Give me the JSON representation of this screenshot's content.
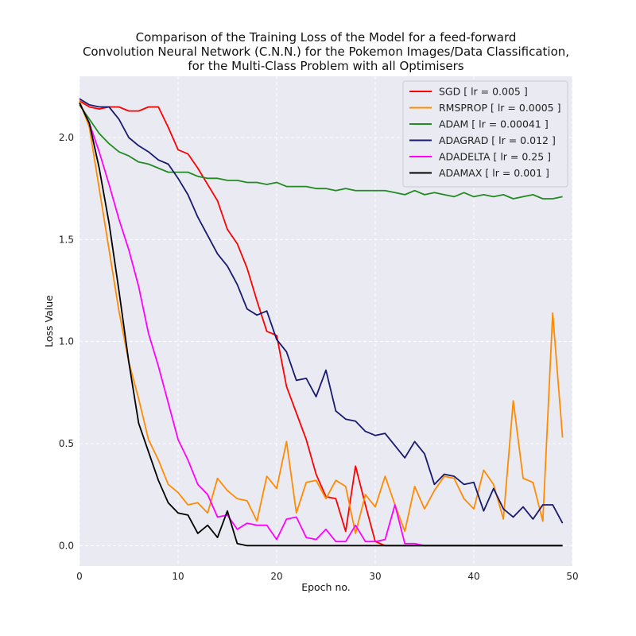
{
  "chart_data": {
    "type": "line",
    "title_lines": [
      "Comparison of the Training Loss of the Model for a feed-forward",
      "Convolution Neural Network (C.N.N.) for the Pokemon Images/Data Classification,",
      "for the Multi-Class Problem with all Optimisers"
    ],
    "xlabel": "Epoch no.",
    "ylabel": "Loss Value",
    "xlim": [
      0,
      50
    ],
    "ylim": [
      -0.1,
      2.3
    ],
    "xticks": [
      0,
      10,
      20,
      30,
      40,
      50
    ],
    "yticks": [
      0.0,
      0.5,
      1.0,
      1.5,
      2.0
    ],
    "xtick_labels": [
      "0",
      "10",
      "20",
      "30",
      "40",
      "50"
    ],
    "ytick_labels": [
      "0.0",
      "0.5",
      "1.0",
      "1.5",
      "2.0"
    ],
    "grid": true,
    "legend_position": "top-right",
    "background_color": "#eaeaf2",
    "x": [
      0,
      1,
      2,
      3,
      4,
      5,
      6,
      7,
      8,
      9,
      10,
      11,
      12,
      13,
      14,
      15,
      16,
      17,
      18,
      19,
      20,
      21,
      22,
      23,
      24,
      25,
      26,
      27,
      28,
      29,
      30,
      31,
      32,
      33,
      34,
      35,
      36,
      37,
      38,
      39,
      40,
      41,
      42,
      43,
      44,
      45,
      46,
      47,
      48,
      49
    ],
    "series": [
      {
        "name": "SGD [ lr = 0.005 ]",
        "color": "#ff0000",
        "values": [
          2.18,
          2.15,
          2.14,
          2.15,
          2.15,
          2.13,
          2.13,
          2.15,
          2.15,
          2.05,
          1.94,
          1.92,
          1.85,
          1.77,
          1.69,
          1.55,
          1.48,
          1.36,
          1.2,
          1.05,
          1.03,
          0.78,
          0.65,
          0.52,
          0.35,
          0.24,
          0.23,
          0.07,
          0.39,
          0.2,
          0.02,
          0.0,
          0.0,
          0.0,
          0.0,
          0.0,
          0.0,
          0.0,
          0.0,
          0.0,
          0.0,
          0.0,
          0.0,
          0.0,
          0.0,
          0.0,
          0.0,
          0.0,
          0.0,
          0.0
        ]
      },
      {
        "name": "RMSPROP [ lr = 0.0005 ]",
        "color": "#ff8c00",
        "values": [
          2.18,
          2.05,
          1.75,
          1.45,
          1.15,
          0.9,
          0.72,
          0.52,
          0.42,
          0.3,
          0.26,
          0.2,
          0.21,
          0.16,
          0.33,
          0.27,
          0.23,
          0.22,
          0.12,
          0.34,
          0.28,
          0.51,
          0.16,
          0.31,
          0.32,
          0.23,
          0.32,
          0.29,
          0.06,
          0.25,
          0.19,
          0.34,
          0.2,
          0.07,
          0.29,
          0.18,
          0.27,
          0.34,
          0.33,
          0.23,
          0.18,
          0.37,
          0.3,
          0.13,
          0.71,
          0.33,
          0.31,
          0.12,
          1.14,
          0.53
        ]
      },
      {
        "name": "ADAM [ lr = 0.00041 ]",
        "color": "#228b22",
        "values": [
          2.16,
          2.09,
          2.02,
          1.97,
          1.93,
          1.91,
          1.88,
          1.87,
          1.85,
          1.83,
          1.83,
          1.83,
          1.81,
          1.8,
          1.8,
          1.79,
          1.79,
          1.78,
          1.78,
          1.77,
          1.78,
          1.76,
          1.76,
          1.76,
          1.75,
          1.75,
          1.74,
          1.75,
          1.74,
          1.74,
          1.74,
          1.74,
          1.73,
          1.72,
          1.74,
          1.72,
          1.73,
          1.72,
          1.71,
          1.73,
          1.71,
          1.72,
          1.71,
          1.72,
          1.7,
          1.71,
          1.72,
          1.7,
          1.7,
          1.71
        ]
      },
      {
        "name": "ADAGRAD [ lr = 0.012 ]",
        "color": "#191970",
        "values": [
          2.19,
          2.16,
          2.15,
          2.15,
          2.09,
          2.0,
          1.96,
          1.93,
          1.89,
          1.87,
          1.8,
          1.72,
          1.61,
          1.52,
          1.43,
          1.37,
          1.28,
          1.16,
          1.13,
          1.15,
          1.01,
          0.95,
          0.81,
          0.82,
          0.73,
          0.86,
          0.66,
          0.62,
          0.61,
          0.56,
          0.54,
          0.55,
          0.49,
          0.43,
          0.51,
          0.45,
          0.3,
          0.35,
          0.34,
          0.3,
          0.31,
          0.17,
          0.28,
          0.18,
          0.14,
          0.19,
          0.13,
          0.2,
          0.2,
          0.11
        ]
      },
      {
        "name": "ADADELTA [ lr = 0.25 ]",
        "color": "#ff00ff",
        "values": [
          2.17,
          2.07,
          1.93,
          1.77,
          1.6,
          1.45,
          1.27,
          1.04,
          0.88,
          0.7,
          0.52,
          0.42,
          0.3,
          0.25,
          0.14,
          0.15,
          0.08,
          0.11,
          0.1,
          0.1,
          0.03,
          0.13,
          0.14,
          0.04,
          0.03,
          0.08,
          0.02,
          0.02,
          0.1,
          0.02,
          0.02,
          0.03,
          0.2,
          0.01,
          0.01,
          0.0,
          0.0,
          0.0,
          0.0,
          0.0,
          0.0,
          0.0,
          0.0,
          0.0,
          0.0,
          0.0,
          0.0,
          0.0,
          0.0,
          0.0
        ]
      },
      {
        "name": "ADAMAX [ lr = 0.001 ]",
        "color": "#000000",
        "values": [
          2.17,
          2.07,
          1.85,
          1.58,
          1.25,
          0.9,
          0.6,
          0.46,
          0.32,
          0.21,
          0.16,
          0.15,
          0.06,
          0.1,
          0.04,
          0.17,
          0.01,
          0.0,
          0.0,
          0.0,
          0.0,
          0.0,
          0.0,
          0.0,
          0.0,
          0.0,
          0.0,
          0.0,
          0.0,
          0.0,
          0.0,
          0.0,
          0.0,
          0.0,
          0.0,
          0.0,
          0.0,
          0.0,
          0.0,
          0.0,
          0.0,
          0.0,
          0.0,
          0.0,
          0.0,
          0.0,
          0.0,
          0.0,
          0.0,
          0.0
        ]
      }
    ]
  }
}
